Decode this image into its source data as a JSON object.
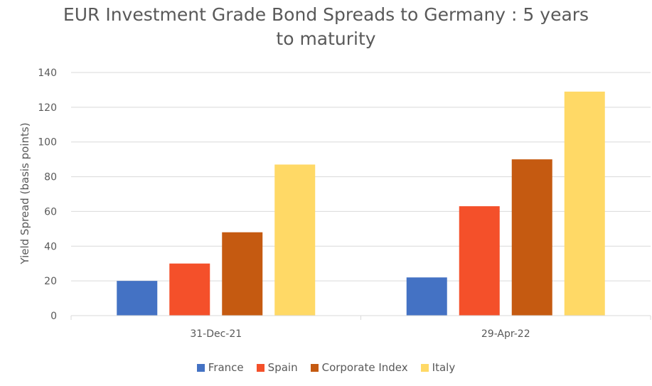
{
  "chart_data": {
    "type": "bar",
    "title_lines": [
      "EUR Investment Grade Bond Spreads to Germany : 5 years",
      "to maturity"
    ],
    "xlabel": "",
    "ylabel": "Yield Spread (basis points)",
    "categories": [
      "31-Dec-21",
      "29-Apr-22"
    ],
    "series": [
      {
        "name": "France",
        "color": "#4472C4",
        "values": [
          20,
          22
        ]
      },
      {
        "name": "Spain",
        "color": "#F4502A",
        "values": [
          30,
          63
        ]
      },
      {
        "name": "Corporate Index",
        "color": "#C55A11",
        "values": [
          48,
          90
        ]
      },
      {
        "name": "Italy",
        "color": "#FFD966",
        "values": [
          87,
          129
        ]
      }
    ],
    "ylim": [
      0,
      140
    ],
    "yticks": [
      0,
      20,
      40,
      60,
      80,
      100,
      120,
      140
    ],
    "grid": true,
    "legend_position": "bottom"
  }
}
